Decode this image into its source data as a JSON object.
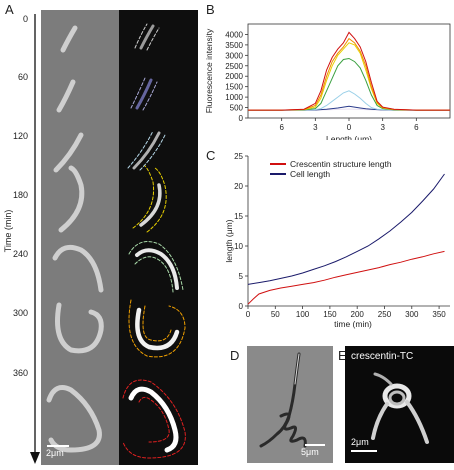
{
  "panels": {
    "a": "A",
    "b": "B",
    "c": "C",
    "d": "D",
    "e": "E"
  },
  "panel_a": {
    "time_label": "Time (min)",
    "times": [
      "0",
      "60",
      "120",
      "180",
      "240",
      "300",
      "360"
    ],
    "scale_bar": "2μm",
    "outline_colors": [
      "#cccccc",
      "#a9a9d6",
      "#b6d8e8",
      "#e8d000",
      "#a8d8a8",
      "#f0a000",
      "#e02020"
    ]
  },
  "panel_d": {
    "scale_bar": "5μm"
  },
  "panel_e": {
    "label": "crescentin-TC",
    "scale_bar": "2μm"
  },
  "chart_data": [
    {
      "type": "line",
      "panel": "B",
      "ylabel": "Fluorescence intensity",
      "xlabel": "Length (μm)",
      "xticks": [
        "6",
        "3",
        "0",
        "3",
        "6"
      ],
      "yticks": [
        "0",
        "500",
        "1000",
        "1500",
        "2000",
        "2500",
        "3000",
        "3500",
        "4000"
      ],
      "xlim": [
        -9,
        9
      ],
      "ylim": [
        0,
        4500
      ],
      "x": [
        -9,
        -6,
        -4,
        -3,
        -2.5,
        -2,
        -1.5,
        -1,
        -0.5,
        0,
        0.5,
        1,
        1.5,
        2,
        2.5,
        3,
        4,
        6,
        9
      ],
      "series": [
        {
          "color": "#e8e0f0",
          "values": [
            380,
            380,
            380,
            385,
            390,
            395,
            400,
            410,
            420,
            430,
            420,
            410,
            400,
            395,
            390,
            385,
            380,
            380,
            380
          ]
        },
        {
          "color": "#2a3a8a",
          "values": [
            380,
            380,
            380,
            385,
            400,
            420,
            450,
            480,
            520,
            560,
            520,
            480,
            440,
            420,
            400,
            390,
            380,
            380,
            380
          ]
        },
        {
          "color": "#9ad0e8",
          "values": [
            380,
            380,
            385,
            400,
            450,
            600,
            800,
            1000,
            1200,
            1300,
            1150,
            950,
            700,
            500,
            420,
            400,
            385,
            380,
            380
          ]
        },
        {
          "color": "#3aa040",
          "values": [
            380,
            380,
            390,
            450,
            700,
            1300,
            1900,
            2500,
            2800,
            2850,
            2700,
            2400,
            1800,
            1100,
            600,
            450,
            390,
            380,
            380
          ]
        },
        {
          "color": "#e8d000",
          "values": [
            380,
            380,
            400,
            520,
            950,
            1800,
            2500,
            3000,
            3300,
            3600,
            3500,
            3100,
            2300,
            1400,
            700,
            480,
            400,
            380,
            380
          ]
        },
        {
          "color": "#f08c00",
          "values": [
            380,
            380,
            410,
            600,
            1100,
            2000,
            2700,
            3100,
            3400,
            3800,
            3600,
            3200,
            2500,
            1500,
            750,
            500,
            410,
            380,
            380
          ]
        },
        {
          "color": "#d01010",
          "values": [
            380,
            380,
            420,
            700,
            1300,
            2300,
            2900,
            3300,
            3600,
            4100,
            3800,
            3400,
            2700,
            1700,
            800,
            520,
            420,
            380,
            380
          ]
        }
      ]
    },
    {
      "type": "line",
      "panel": "C",
      "ylabel": "length (μm)",
      "xlabel": "time (min)",
      "xticks": [
        "0",
        "50",
        "100",
        "150",
        "200",
        "250",
        "300",
        "350"
      ],
      "yticks": [
        "0",
        "5",
        "10",
        "15",
        "20",
        "25"
      ],
      "xlim": [
        0,
        370
      ],
      "ylim": [
        0,
        25
      ],
      "legend": [
        "Crescentin structure length",
        "Cell length"
      ],
      "series": [
        {
          "name": "Crescentin structure length",
          "color": "#d01010",
          "x": [
            0,
            10,
            20,
            40,
            60,
            80,
            100,
            120,
            140,
            160,
            180,
            200,
            220,
            240,
            260,
            280,
            300,
            320,
            340,
            360
          ],
          "values": [
            0.3,
            1.2,
            2.0,
            2.6,
            3.0,
            3.3,
            3.6,
            3.9,
            4.3,
            4.8,
            5.2,
            5.6,
            6.0,
            6.4,
            6.9,
            7.3,
            7.8,
            8.2,
            8.7,
            9.1
          ]
        },
        {
          "name": "Cell length",
          "color": "#1a1a6a",
          "x": [
            0,
            20,
            40,
            60,
            80,
            100,
            120,
            140,
            160,
            180,
            200,
            220,
            240,
            260,
            280,
            300,
            320,
            340,
            360
          ],
          "values": [
            3.6,
            3.9,
            4.2,
            4.6,
            5.0,
            5.5,
            6.1,
            6.7,
            7.4,
            8.2,
            9.1,
            10.0,
            11.2,
            12.5,
            14.0,
            15.6,
            17.5,
            19.5,
            22.0
          ]
        }
      ]
    }
  ]
}
